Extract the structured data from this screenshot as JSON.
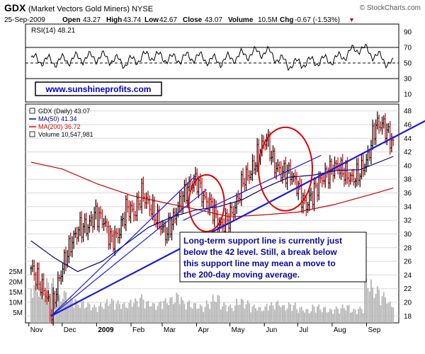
{
  "header": {
    "symbol": "GDX",
    "description": "(Market Vectors Gold Miners) NYSE",
    "watermark": "© StockCharts.com",
    "date": "25-Sep-2009",
    "open_label": "Open",
    "open": "43.27",
    "high_label": "High",
    "high": "43.74",
    "low_label": "Low",
    "low": "42.67",
    "close_label": "Close",
    "close": "43.07",
    "volume_label": "Volume",
    "volume": "10.5M",
    "chg_label": "Chg",
    "chg": "-0.67 (-1.53%)",
    "chg_arrow": "▼"
  },
  "rsi_panel": {
    "label": "RSI(14) 48.21",
    "url_box": "www.sunshineprofits.com"
  },
  "price_panel": {
    "legend": [
      {
        "text": "GDX (Daily) 43.07",
        "color": "#000000"
      },
      {
        "text": "MA(50) 41.34",
        "color": "#00007a"
      },
      {
        "text": "MA(200) 36.72",
        "color": "#cc0000"
      },
      {
        "text": "Volume 10,547,981",
        "color": "#000000"
      }
    ],
    "annotation_lines": [
      "Long-term support line is currently just",
      "below the 42 level. Still, a break below",
      "this support line may mean a move to",
      "the 200-day moving average."
    ]
  },
  "colors": {
    "up_bar": "#000000",
    "down_bar": "#d40000",
    "ma50": "#00007a",
    "ma200": "#cc0000",
    "trendline": "#1a1adc",
    "circle": "#dd0000",
    "volume_bar": "#b4b4b4",
    "grid": "#d8d8d8",
    "annotation_text": "#0a0a9a"
  },
  "chart_data": [
    {
      "type": "line",
      "title": "RSI(14) 48.21",
      "ylim": [
        0,
        100
      ],
      "y_ticks": [
        10,
        30,
        50,
        70,
        90
      ],
      "reference_lines": [
        70,
        50,
        30
      ],
      "x_dates": [
        "2008-11-03",
        "2008-11-24",
        "2008-12-15",
        "2009-01-06",
        "2009-01-27",
        "2009-02-17",
        "2009-03-10",
        "2009-03-31",
        "2009-04-21",
        "2009-05-12",
        "2009-06-02",
        "2009-06-23",
        "2009-07-15",
        "2009-08-05",
        "2009-08-26",
        "2009-09-25"
      ],
      "values": [
        55,
        52,
        56,
        58,
        50,
        60,
        55,
        58,
        52,
        60,
        65,
        48,
        52,
        55,
        70,
        48
      ]
    },
    {
      "type": "candlestick",
      "title": "GDX (Daily) 43.07",
      "ylim": [
        17,
        49
      ],
      "y_ticks": [
        18,
        20,
        22,
        24,
        26,
        28,
        30,
        32,
        34,
        36,
        38,
        40,
        42,
        44,
        46,
        48
      ],
      "x_ticks": [
        "Nov",
        "Dec",
        "2009",
        "Feb",
        "Mar",
        "Apr",
        "May",
        "Jun",
        "Jul",
        "Aug",
        "Sep"
      ],
      "close_series": {
        "x": [
          "2008-11-03",
          "2008-11-10",
          "2008-11-17",
          "2008-11-21",
          "2008-11-26",
          "2008-12-03",
          "2008-12-10",
          "2008-12-17",
          "2008-12-24",
          "2008-12-31",
          "2009-01-07",
          "2009-01-14",
          "2009-01-21",
          "2009-01-28",
          "2009-02-04",
          "2009-02-11",
          "2009-02-18",
          "2009-02-25",
          "2009-03-04",
          "2009-03-11",
          "2009-03-18",
          "2009-03-25",
          "2009-04-01",
          "2009-04-08",
          "2009-04-15",
          "2009-04-22",
          "2009-04-29",
          "2009-05-06",
          "2009-05-13",
          "2009-05-20",
          "2009-05-27",
          "2009-06-03",
          "2009-06-10",
          "2009-06-17",
          "2009-06-24",
          "2009-07-01",
          "2009-07-08",
          "2009-07-15",
          "2009-07-22",
          "2009-07-29",
          "2009-08-05",
          "2009-08-12",
          "2009-08-19",
          "2009-08-26",
          "2009-09-02",
          "2009-09-09",
          "2009-09-16",
          "2009-09-25"
        ],
        "values": [
          25,
          23,
          21,
          18,
          22,
          26,
          29,
          31,
          31,
          33,
          32,
          29,
          30,
          34,
          33,
          36,
          34,
          32,
          30,
          32,
          35,
          37,
          38,
          35,
          34,
          31,
          32,
          34,
          38,
          39,
          42,
          44,
          40,
          39,
          39,
          37,
          34,
          36,
          38,
          39,
          40,
          39,
          38,
          39,
          41,
          46,
          46,
          43.07
        ]
      },
      "ma50": {
        "x": [
          "2008-11-03",
          "2008-11-24",
          "2008-12-15",
          "2009-01-06",
          "2009-01-27",
          "2009-02-17",
          "2009-03-10",
          "2009-03-31",
          "2009-04-21",
          "2009-05-12",
          "2009-06-02",
          "2009-06-23",
          "2009-07-15",
          "2009-08-05",
          "2009-08-26",
          "2009-09-25"
        ],
        "values": [
          29,
          26.5,
          24.5,
          26,
          28.5,
          31,
          32.5,
          33.5,
          34,
          35,
          36.8,
          38.3,
          38.6,
          39.3,
          39.4,
          41.34
        ]
      },
      "ma200": {
        "x": [
          "2008-11-03",
          "2008-12-01",
          "2009-01-02",
          "2009-02-02",
          "2009-03-02",
          "2009-04-01",
          "2009-05-01",
          "2009-06-01",
          "2009-07-01",
          "2009-08-03",
          "2009-09-01",
          "2009-09-25"
        ],
        "values": [
          40.5,
          39.5,
          37.3,
          35.6,
          34.6,
          33.6,
          32.5,
          32.8,
          33.2,
          34.3,
          35.6,
          36.72
        ]
      },
      "trendlines": [
        {
          "x": [
            "2008-11-21",
            "2009-09-30"
          ],
          "y": [
            18,
            44
          ]
        },
        {
          "x": [
            "2008-11-21",
            "2009-04-10"
          ],
          "y": [
            18,
            36.5
          ]
        },
        {
          "x": [
            "2008-11-21",
            "2009-03-31"
          ],
          "y": [
            18,
            38.5
          ]
        },
        {
          "x": [
            "2009-03-20",
            "2009-07-22"
          ],
          "y": [
            32,
            41.5
          ]
        }
      ],
      "highlight_circles": [
        {
          "x": "2009-04-10",
          "y": 34.5
        },
        {
          "x": "2009-06-20",
          "y": 39.5
        }
      ]
    },
    {
      "type": "bar",
      "title": "Volume 10,547,981",
      "ylim": [
        0,
        28
      ],
      "y_ticks_labels": [
        "5M",
        "10M",
        "15M",
        "20M",
        "25M"
      ],
      "y_ticks": [
        5,
        10,
        15,
        20,
        25
      ],
      "approx_weekly_volume_millions": [
        20,
        18,
        22,
        14,
        16,
        13,
        11,
        10,
        9,
        10,
        12,
        11,
        10,
        12,
        14,
        11,
        10,
        12,
        13,
        15,
        11,
        10,
        9,
        11,
        14,
        10,
        9,
        12,
        11,
        9,
        8,
        10,
        11,
        9,
        10,
        8,
        7,
        9,
        8,
        7,
        8,
        9,
        7,
        8,
        22,
        18,
        15,
        10.5
      ]
    }
  ]
}
